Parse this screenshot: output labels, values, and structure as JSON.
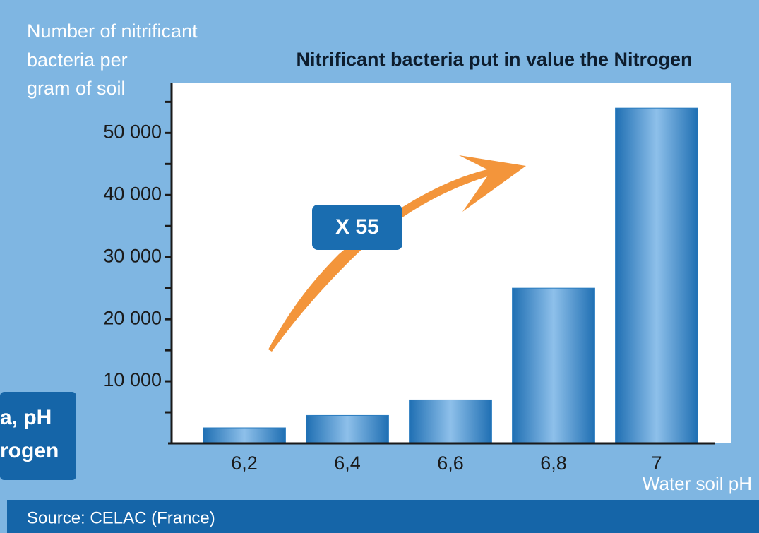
{
  "chart_data": {
    "type": "bar",
    "title": "Nitrificant bacteria put in value the Nitrogen",
    "y_label": [
      "Number of nitrificant",
      "bacteria per",
      "gram of soil"
    ],
    "x_label": "Water soil pH",
    "categories": [
      "6,2",
      "6,4",
      "6,6",
      "6,8",
      "7"
    ],
    "values": [
      2500,
      4500,
      7000,
      25000,
      54000
    ],
    "color": "#2a7cc0",
    "ylim": [
      0,
      58000
    ],
    "yticks": [
      {
        "value": 10000,
        "label": "10 000"
      },
      {
        "value": 20000,
        "label": "20 000"
      },
      {
        "value": 30000,
        "label": "30 000"
      },
      {
        "value": 40000,
        "label": "40 000"
      },
      {
        "value": 50000,
        "label": "50 000"
      }
    ],
    "minor_yticks": [
      5000,
      15000,
      25000,
      35000,
      45000,
      55000
    ],
    "annotation": "X 55",
    "source": "Source: CELAC (France)",
    "side_label": [
      "a, pH",
      "rogen"
    ]
  }
}
